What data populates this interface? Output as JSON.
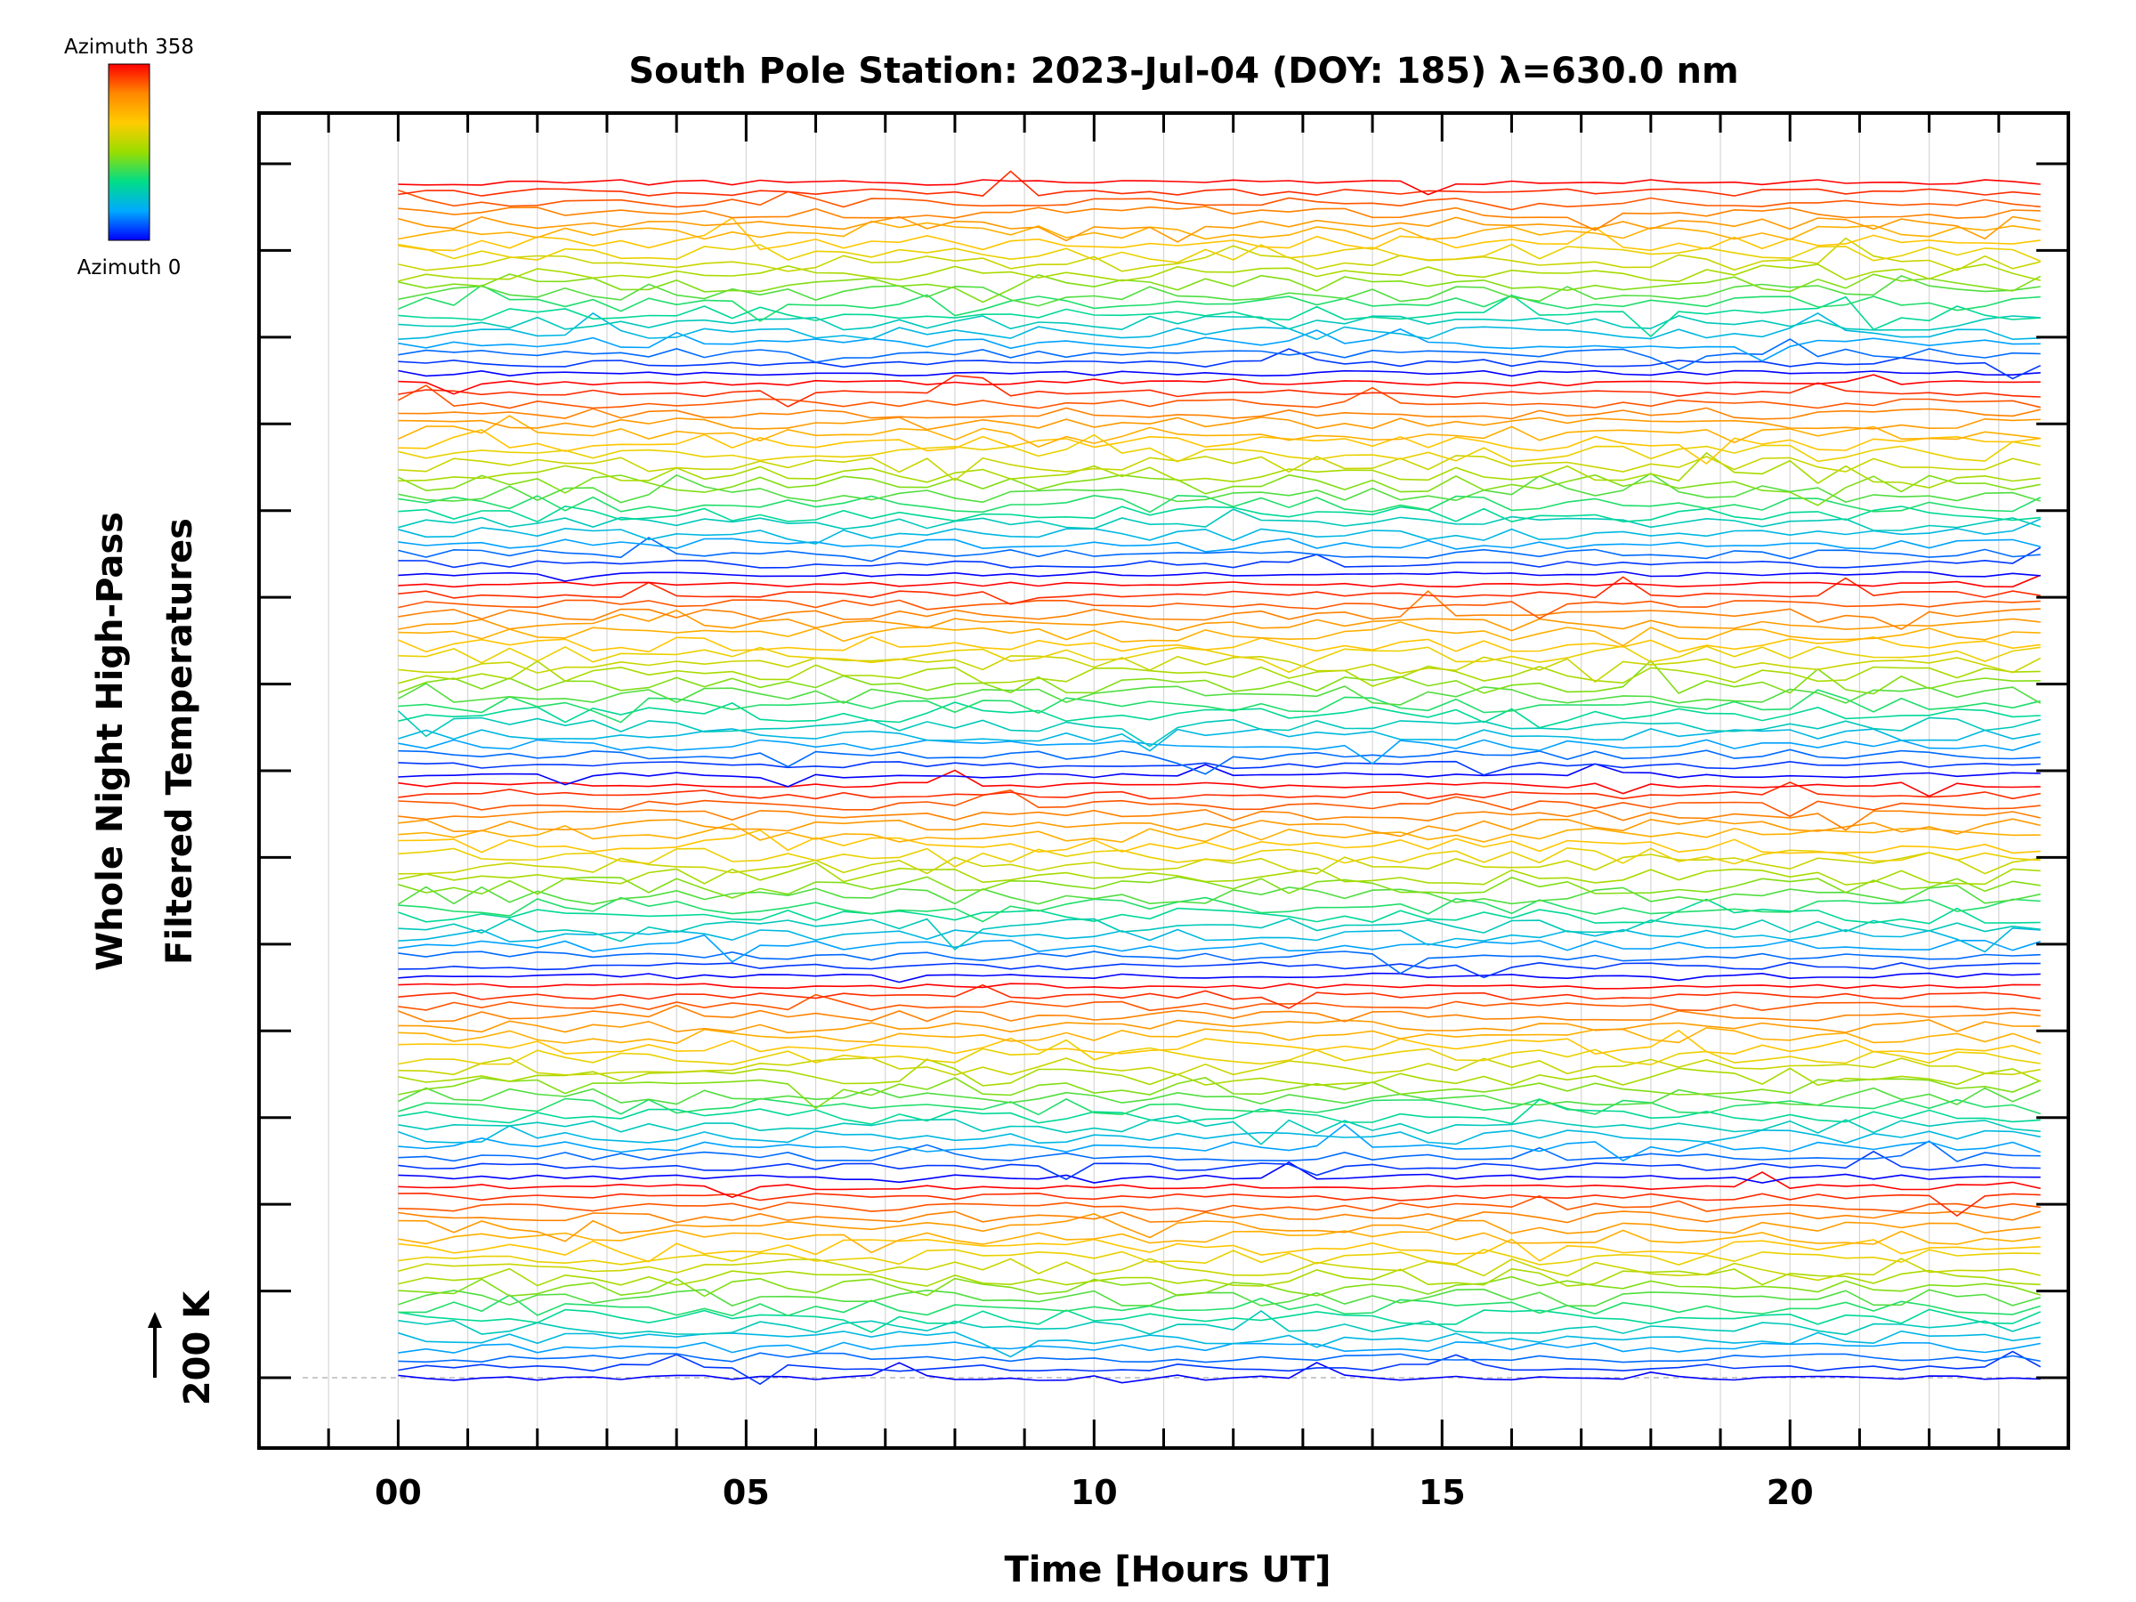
{
  "chart_data": {
    "type": "line",
    "title": "South Pole Station: 2023-Jul-04 (DOY: 185) λ=630.0 nm",
    "xlabel": "Time [Hours UT]",
    "ylabel_line1": "Whole Night High-Pass",
    "ylabel_line2": "Filtered Temperatures",
    "xlim": [
      -2,
      24
    ],
    "x_tick_labels": [
      {
        "value": 0,
        "label": "00"
      },
      {
        "value": 5,
        "label": "05"
      },
      {
        "value": 10,
        "label": "10"
      },
      {
        "value": 15,
        "label": "15"
      },
      {
        "value": 20,
        "label": "20"
      }
    ],
    "x_minor_step_hours": 1,
    "y_scale_label": "200 K",
    "y_major_tick_count": 15,
    "colorbar": {
      "top_label": "Azimuth 358",
      "bottom_label": "Azimuth 0",
      "min": 0,
      "max": 358,
      "colors": [
        "#0000ff",
        "#00aaff",
        "#00dd88",
        "#99dd00",
        "#ffcc00",
        "#ff8800",
        "#ff0000"
      ]
    },
    "series_summary": {
      "series_count": 120,
      "groups": 6,
      "traces_per_group": 20,
      "time_start_hours": 0,
      "time_end_hours": 23.8,
      "sample_step_hours": 0.4,
      "azimuth_start_deg": 0,
      "azimuth_end_deg": 358,
      "description": "Each trace is the high-pass filtered temperature for one azimuth look direction, stacked with vertical offsets; colour encodes azimuth."
    }
  }
}
